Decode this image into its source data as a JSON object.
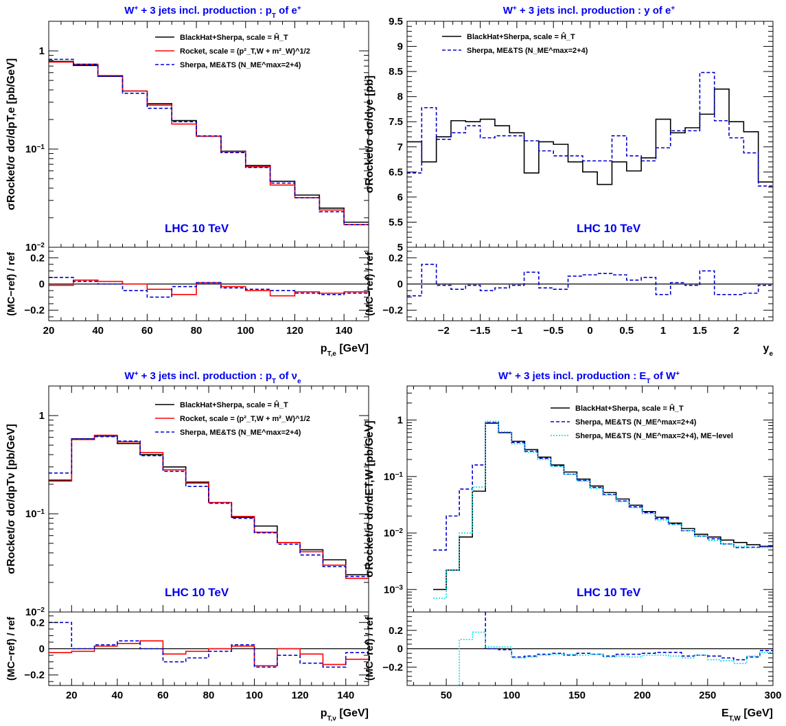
{
  "chart_data": [
    {
      "type": "line",
      "title": "W⁺ + 3 jets incl. production : p_T of e⁺",
      "title_html": "W<tspan baseline-shift=\"super\" font-size=\"10\">+</tspan> + 3 jets incl. production : p<tspan baseline-shift=\"sub\" font-size=\"10\">T</tspan> of e<tspan baseline-shift=\"super\" font-size=\"10\">+</tspan>",
      "ylabel": "σRocket/σ dσ/dpT,e [pb/GeV]",
      "ratio_ylabel": "(MC−ref) / ref",
      "xlabel": "pT,e [GeV]",
      "x_title_main": "p",
      "x_title_sub": "T,e",
      "x_title_unit": "[GeV]",
      "annotation": "LHC 10 TeV",
      "yscale": "log",
      "xlim": [
        20,
        150
      ],
      "ylim": [
        0.01,
        2
      ],
      "ratio_ylim": [
        -0.28,
        0.28
      ],
      "xticks": [
        20,
        40,
        60,
        80,
        100,
        120,
        140
      ],
      "ratio_yticks": [
        -0.2,
        0,
        0.2
      ],
      "legend_position": "top-right",
      "bin_edges": [
        20,
        30,
        40,
        50,
        60,
        70,
        80,
        90,
        100,
        110,
        120,
        130,
        140,
        150
      ],
      "series": [
        {
          "name": "BlackHat+Sherpa,  scale = Ĥ_T",
          "color": "#000000",
          "style": "solid",
          "values": [
            0.78,
            0.71,
            0.55,
            0.39,
            0.29,
            0.195,
            0.135,
            0.095,
            0.068,
            0.047,
            0.034,
            0.025,
            0.018
          ]
        },
        {
          "name": "Rocket,  scale = (p²_T,W + m²_W)^1/2",
          "color": "#ff0000",
          "style": "solid",
          "values": [
            0.77,
            0.73,
            0.56,
            0.39,
            0.28,
            0.18,
            0.135,
            0.094,
            0.066,
            0.043,
            0.032,
            0.024,
            0.017
          ]
        },
        {
          "name": "Sherpa,  ME&TS (N_ME^max=2+4)",
          "color": "#0000cc",
          "style": "dashed",
          "values": [
            0.82,
            0.73,
            0.55,
            0.37,
            0.26,
            0.19,
            0.136,
            0.092,
            0.065,
            0.045,
            0.032,
            0.023,
            0.017
          ]
        }
      ],
      "ratio_series": [
        {
          "name": "Rocket",
          "color": "#ff0000",
          "style": "solid",
          "values": [
            -0.01,
            0.03,
            0.02,
            0.0,
            -0.04,
            -0.08,
            0.01,
            -0.02,
            -0.05,
            -0.09,
            -0.06,
            -0.07,
            -0.06
          ]
        },
        {
          "name": "Sherpa",
          "color": "#0000cc",
          "style": "dashed",
          "values": [
            0.05,
            0.02,
            0.0,
            -0.05,
            -0.1,
            -0.02,
            0.01,
            -0.03,
            -0.04,
            -0.05,
            -0.07,
            -0.08,
            -0.07
          ]
        }
      ]
    },
    {
      "type": "line",
      "title": "W⁺ + 3 jets incl. production : y of e⁺",
      "title_html": "W<tspan baseline-shift=\"super\" font-size=\"10\">+</tspan> + 3 jets incl. production : y of e<tspan baseline-shift=\"super\" font-size=\"10\">+</tspan>",
      "ylabel": "σRocket/σ dσ/dye [pb]",
      "ratio_ylabel": "(MC−ref) / ref",
      "xlabel": "ye",
      "x_title_main": "y",
      "x_title_sub": "e",
      "x_title_unit": "",
      "annotation": "LHC 10 TeV",
      "yscale": "linear",
      "xlim": [
        -2.5,
        2.5
      ],
      "ylim": [
        5,
        9.5
      ],
      "yticks": [
        5,
        5.5,
        6,
        6.5,
        7,
        7.5,
        8,
        8.5,
        9,
        9.5
      ],
      "ratio_ylim": [
        -0.28,
        0.28
      ],
      "xticks": [
        -2,
        -1.5,
        -1,
        -0.5,
        0,
        0.5,
        1,
        1.5,
        2
      ],
      "ratio_yticks": [
        -0.2,
        0,
        0.2
      ],
      "legend_position": "top-left",
      "bin_edges": [
        -2.5,
        -2.3,
        -2.1,
        -1.9,
        -1.7,
        -1.5,
        -1.3,
        -1.1,
        -0.9,
        -0.7,
        -0.5,
        -0.3,
        -0.1,
        0.1,
        0.3,
        0.5,
        0.7,
        0.9,
        1.1,
        1.3,
        1.5,
        1.7,
        1.9,
        2.1,
        2.3,
        2.5
      ],
      "series": [
        {
          "name": "BlackHat+Sherpa,  scale = Ĥ_T",
          "color": "#000000",
          "style": "solid",
          "values": [
            7.1,
            6.7,
            7.2,
            7.52,
            7.5,
            7.55,
            7.42,
            7.28,
            6.48,
            7.1,
            7.05,
            6.7,
            6.5,
            6.25,
            6.7,
            6.52,
            6.78,
            7.55,
            7.28,
            7.38,
            7.65,
            8.15,
            7.5,
            7.3,
            6.3
          ]
        },
        {
          "name": "Sherpa,  ME&TS (N_ME^max=2+4)",
          "color": "#0000cc",
          "style": "dashed",
          "values": [
            6.48,
            7.78,
            7.15,
            7.28,
            7.42,
            7.18,
            7.22,
            7.22,
            7.12,
            6.92,
            6.82,
            6.82,
            6.72,
            6.72,
            7.22,
            6.82,
            6.72,
            6.98,
            7.32,
            7.32,
            8.48,
            7.52,
            7.18,
            6.88,
            6.22
          ]
        }
      ],
      "ratio_series": [
        {
          "name": "Sherpa",
          "color": "#0000cc",
          "style": "dashed",
          "values": [
            -0.09,
            0.15,
            -0.01,
            -0.04,
            -0.01,
            -0.05,
            -0.03,
            -0.01,
            0.09,
            -0.03,
            -0.04,
            0.06,
            0.07,
            0.08,
            0.07,
            0.03,
            0.05,
            -0.08,
            0.01,
            -0.01,
            0.1,
            -0.08,
            -0.08,
            -0.07,
            -0.01
          ]
        }
      ]
    },
    {
      "type": "line",
      "title": "W⁺ + 3 jets incl. production : p_T of ν_e",
      "title_html": "W<tspan baseline-shift=\"super\" font-size=\"10\">+</tspan> + 3 jets incl. production : p<tspan baseline-shift=\"sub\" font-size=\"10\">T</tspan> of ν<tspan baseline-shift=\"sub\" font-size=\"10\">e</tspan>",
      "ylabel": "σRocket/σ dσ/dpTν [pb/GeV]",
      "ratio_ylabel": "(MC−ref) / ref",
      "xlabel": "pT,ν [GeV]",
      "x_title_main": "p",
      "x_title_sub": "T,ν",
      "x_title_unit": "[GeV]",
      "annotation": "LHC 10 TeV",
      "yscale": "log",
      "xlim": [
        10,
        150
      ],
      "ylim": [
        0.01,
        2
      ],
      "ratio_ylim": [
        -0.28,
        0.28
      ],
      "xticks": [
        20,
        40,
        60,
        80,
        100,
        120,
        140
      ],
      "ratio_yticks": [
        -0.2,
        0,
        0.2
      ],
      "legend_position": "top-right",
      "bin_edges": [
        10,
        20,
        30,
        40,
        50,
        60,
        70,
        80,
        90,
        100,
        110,
        120,
        130,
        140,
        150
      ],
      "series": [
        {
          "name": "BlackHat+Sherpa,  scale = Ĥ_T",
          "color": "#000000",
          "style": "solid",
          "values": [
            0.22,
            0.58,
            0.62,
            0.52,
            0.4,
            0.3,
            0.21,
            0.13,
            0.092,
            0.075,
            0.051,
            0.043,
            0.034,
            0.024
          ]
        },
        {
          "name": "Rocket,  scale = (p²_T,W + m²_W)^1/2",
          "color": "#ff0000",
          "style": "solid",
          "values": [
            0.215,
            0.57,
            0.63,
            0.54,
            0.42,
            0.28,
            0.205,
            0.13,
            0.094,
            0.065,
            0.051,
            0.041,
            0.03,
            0.022
          ]
        },
        {
          "name": "Sherpa,  ME&TS (N_ME^max=2+4)",
          "color": "#0000cc",
          "style": "dashed",
          "values": [
            0.26,
            0.58,
            0.61,
            0.55,
            0.39,
            0.27,
            0.19,
            0.128,
            0.09,
            0.064,
            0.049,
            0.038,
            0.029,
            0.023
          ]
        }
      ],
      "ratio_series": [
        {
          "name": "Rocket",
          "color": "#ff0000",
          "style": "solid",
          "values": [
            -0.03,
            -0.02,
            0.02,
            0.04,
            0.06,
            -0.04,
            -0.02,
            0.0,
            0.02,
            -0.13,
            0.0,
            -0.04,
            -0.12,
            -0.08
          ]
        },
        {
          "name": "Sherpa",
          "color": "#0000cc",
          "style": "dashed",
          "values": [
            0.2,
            0.0,
            0.03,
            0.06,
            0.0,
            -0.1,
            -0.07,
            -0.02,
            0.03,
            -0.14,
            -0.05,
            -0.11,
            -0.14,
            -0.03
          ]
        }
      ]
    },
    {
      "type": "line",
      "title": "W⁺ + 3 jets incl. production : E_T of W⁺",
      "title_html": "W<tspan baseline-shift=\"super\" font-size=\"10\">+</tspan> + 3 jets incl. production : E<tspan baseline-shift=\"sub\" font-size=\"10\">T</tspan> of W<tspan baseline-shift=\"super\" font-size=\"10\">+</tspan>",
      "ylabel": "σRocket/σ dσ/dET,W [pb/GeV]",
      "ratio_ylabel": "(MC−ref) / ref",
      "xlabel": "ET,W [GeV]",
      "x_title_main": "E",
      "x_title_sub": "T,W",
      "x_title_unit": "[GeV]",
      "annotation": "LHC 10 TeV",
      "yscale": "log",
      "xlim": [
        20,
        300
      ],
      "ylim": [
        0.0004,
        4
      ],
      "ratio_ylim": [
        -0.4,
        0.4
      ],
      "xticks": [
        50,
        100,
        150,
        200,
        250,
        300
      ],
      "ratio_yticks": [
        -0.2,
        0,
        0.2
      ],
      "legend_position": "top-right",
      "bin_edges": [
        40,
        50,
        60,
        70,
        80,
        90,
        100,
        110,
        120,
        130,
        140,
        150,
        160,
        170,
        180,
        190,
        200,
        210,
        220,
        230,
        240,
        250,
        260,
        270,
        280,
        290,
        300
      ],
      "series": [
        {
          "name": "BlackHat+Sherpa,  scale = Ĥ_T",
          "color": "#000000",
          "style": "solid",
          "values": [
            0.001,
            0.0022,
            0.0085,
            0.055,
            0.88,
            0.6,
            0.42,
            0.3,
            0.22,
            0.16,
            0.12,
            0.09,
            0.068,
            0.052,
            0.04,
            0.031,
            0.024,
            0.019,
            0.015,
            0.012,
            0.0095,
            0.0085,
            0.0075,
            0.0068,
            0.0062,
            0.0058
          ]
        },
        {
          "name": "Sherpa,  ME&TS (N_ME^max=2+4)",
          "color": "#0000cc",
          "style": "dashed",
          "values": [
            0.005,
            0.02,
            0.06,
            0.16,
            0.9,
            0.6,
            0.4,
            0.28,
            0.21,
            0.155,
            0.11,
            0.085,
            0.064,
            0.048,
            0.037,
            0.029,
            0.023,
            0.018,
            0.0145,
            0.011,
            0.0088,
            0.0079,
            0.0064,
            0.0055,
            0.0056,
            0.0058
          ]
        },
        {
          "name": "Sherpa,  ME&TS (N_ME^max=2+4),  ME−level",
          "color": "#00dddd",
          "style": "dotted",
          "values": [
            0.0007,
            0.0022,
            0.01,
            0.065,
            0.95,
            0.62,
            0.38,
            0.27,
            0.2,
            0.15,
            0.11,
            0.083,
            0.062,
            0.047,
            0.036,
            0.028,
            0.022,
            0.017,
            0.014,
            0.011,
            0.0088,
            0.0074,
            0.0064,
            0.0058,
            0.0055,
            0.0055
          ]
        }
      ],
      "ratio_series": [
        {
          "name": "Sherpa",
          "color": "#0000cc",
          "style": "dashed",
          "values": [
            3.0,
            3.0,
            3.0,
            3.0,
            0.0,
            -0.01,
            -0.09,
            -0.08,
            -0.06,
            -0.05,
            -0.07,
            -0.05,
            -0.06,
            -0.08,
            -0.06,
            -0.06,
            -0.05,
            -0.04,
            -0.04,
            -0.08,
            -0.07,
            -0.08,
            -0.1,
            -0.12,
            -0.09,
            -0.02
          ]
        },
        {
          "name": "Sherpa ME−level",
          "color": "#00dddd",
          "style": "dotted",
          "values": [
            -0.5,
            -0.5,
            0.1,
            0.18,
            0.02,
            0.02,
            -0.1,
            -0.09,
            -0.07,
            -0.06,
            -0.06,
            -0.07,
            -0.06,
            -0.09,
            -0.08,
            -0.09,
            -0.07,
            -0.07,
            -0.08,
            -0.1,
            -0.07,
            -0.12,
            -0.13,
            -0.16,
            -0.08,
            -0.04
          ]
        }
      ]
    }
  ]
}
